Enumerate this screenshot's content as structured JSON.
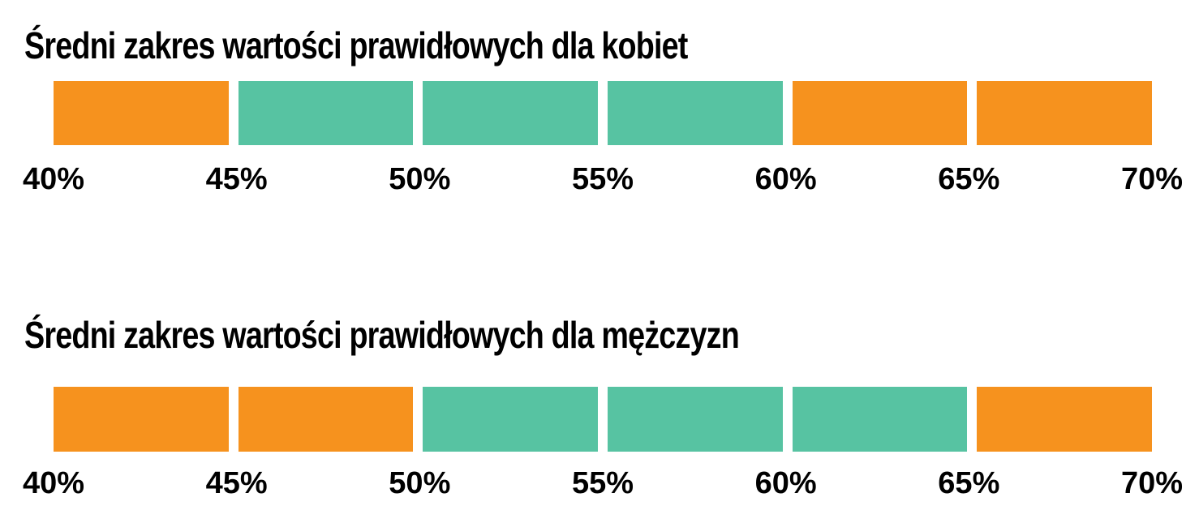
{
  "page": {
    "background": "#FFFFFF",
    "text_color": "#000000"
  },
  "colors": {
    "in_range_green": "#57C3A2",
    "out_of_range_orange": "#F6921E"
  },
  "chart_data": [
    {
      "type": "bar",
      "subtype": "segmented-range-scale",
      "orientation": "horizontal",
      "title": "Średni zakres wartości prawidłowych dla kobiet",
      "axis_unit": "%",
      "xlim": [
        40,
        70
      ],
      "tick_interval": 5,
      "tick_labels": [
        "40%",
        "45%",
        "50%",
        "55%",
        "60%",
        "65%",
        "70%"
      ],
      "normal_range": [
        45,
        60
      ],
      "legend": "none",
      "grid": false,
      "segments": [
        {
          "from": 40,
          "to": 45,
          "state": "outside-range",
          "color": "#F6921E"
        },
        {
          "from": 45,
          "to": 50,
          "state": "normal-range",
          "color": "#57C3A2"
        },
        {
          "from": 50,
          "to": 55,
          "state": "normal-range",
          "color": "#57C3A2"
        },
        {
          "from": 55,
          "to": 60,
          "state": "normal-range",
          "color": "#57C3A2"
        },
        {
          "from": 60,
          "to": 65,
          "state": "outside-range",
          "color": "#F6921E"
        },
        {
          "from": 65,
          "to": 70,
          "state": "outside-range",
          "color": "#F6921E"
        }
      ]
    },
    {
      "type": "bar",
      "subtype": "segmented-range-scale",
      "orientation": "horizontal",
      "title": "Średni zakres wartości prawidłowych dla mężczyzn",
      "axis_unit": "%",
      "xlim": [
        40,
        70
      ],
      "tick_interval": 5,
      "tick_labels": [
        "40%",
        "45%",
        "50%",
        "55%",
        "60%",
        "65%",
        "70%"
      ],
      "normal_range": [
        50,
        65
      ],
      "legend": "none",
      "grid": false,
      "segments": [
        {
          "from": 40,
          "to": 45,
          "state": "outside-range",
          "color": "#F6921E"
        },
        {
          "from": 45,
          "to": 50,
          "state": "outside-range",
          "color": "#F6921E"
        },
        {
          "from": 50,
          "to": 55,
          "state": "normal-range",
          "color": "#57C3A2"
        },
        {
          "from": 55,
          "to": 60,
          "state": "normal-range",
          "color": "#57C3A2"
        },
        {
          "from": 60,
          "to": 65,
          "state": "normal-range",
          "color": "#57C3A2"
        },
        {
          "from": 65,
          "to": 70,
          "state": "outside-range",
          "color": "#F6921E"
        }
      ]
    }
  ]
}
